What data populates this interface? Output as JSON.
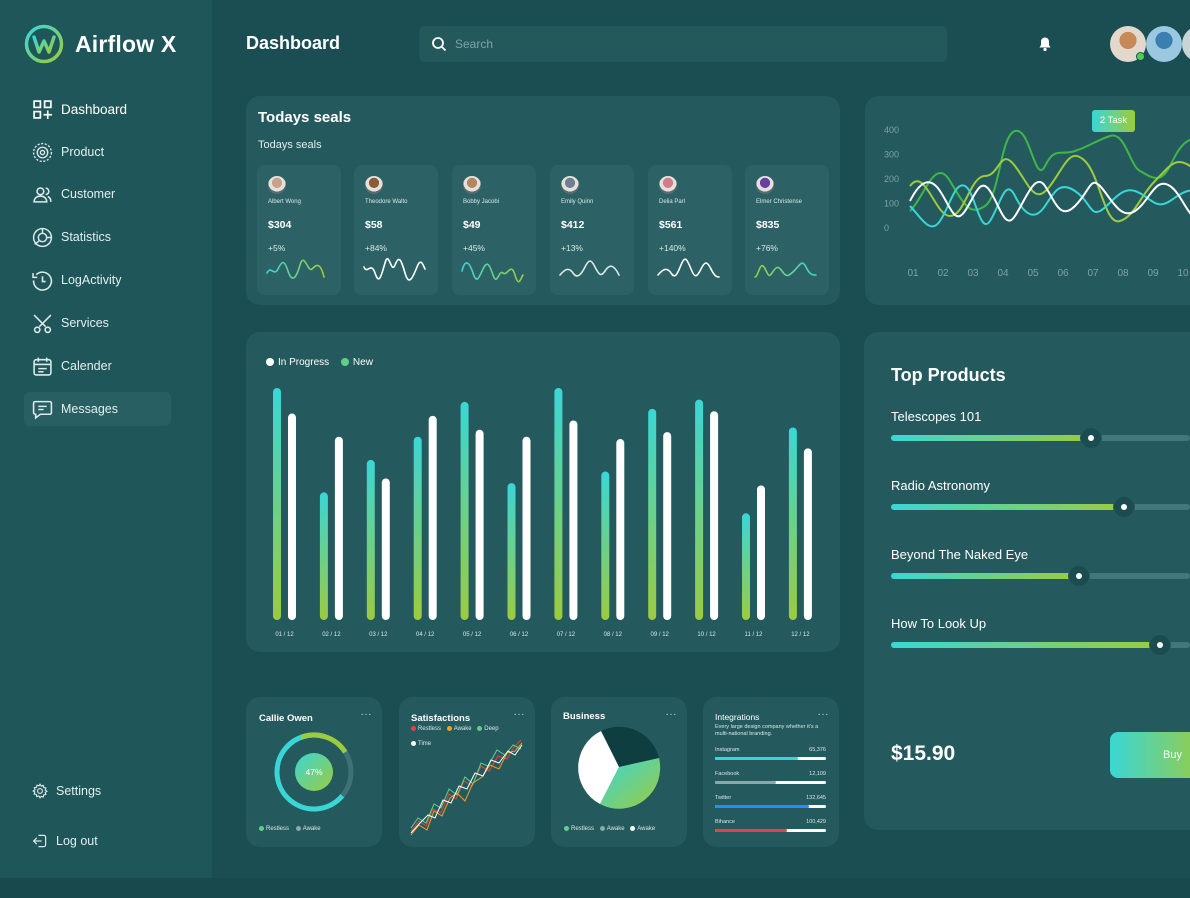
{
  "app": {
    "name": "Airflow X"
  },
  "nav": {
    "items": [
      {
        "label": "Dashboard"
      },
      {
        "label": "Product"
      },
      {
        "label": "Customer"
      },
      {
        "label": "Statistics"
      },
      {
        "label": "LogActivity"
      },
      {
        "label": "Services"
      },
      {
        "label": "Calender"
      },
      {
        "label": "Messages"
      }
    ],
    "settings": "Settings",
    "logout": "Log out"
  },
  "header": {
    "title": "Dashboard",
    "search_placeholder": "Search"
  },
  "seals": {
    "title": "Todays seals",
    "subtitle": "Todays seals",
    "items": [
      {
        "name": "Albert Wong",
        "amount": "$304",
        "change": "+5%"
      },
      {
        "name": "Theodore Walto",
        "amount": "$58",
        "change": "+84%"
      },
      {
        "name": "Bobby Jacobi",
        "amount": "$49",
        "change": "+45%"
      },
      {
        "name": "Emily Quinn",
        "amount": "$412",
        "change": "+13%"
      },
      {
        "name": "Delia Parl",
        "amount": "$561",
        "change": "+140%"
      },
      {
        "name": "Elmer Christense",
        "amount": "$835",
        "change": "+76%"
      }
    ]
  },
  "wave": {
    "badge": "2 Task"
  },
  "top_products": {
    "title": "Top Products",
    "items": [
      {
        "name": "Telescopes 101",
        "progress": 0.67
      },
      {
        "name": "Radio Astronomy",
        "progress": 0.78
      },
      {
        "name": "Beyond The Naked Eye",
        "progress": 0.63
      },
      {
        "name": "How To Look Up",
        "progress": 0.9
      }
    ],
    "price": "$15.90",
    "buy_label": "Buy"
  },
  "callie": {
    "title": "Callie Owen",
    "percent": "47%",
    "legend": [
      "Restless",
      "Awake"
    ]
  },
  "satisfactions": {
    "title": "Satisfactions",
    "legend": [
      "Restless",
      "Awake",
      "Deep",
      "Time"
    ]
  },
  "business": {
    "title": "Business",
    "legend": [
      "Restless",
      "Awake",
      "Awake"
    ]
  },
  "integrations": {
    "title": "Integrations",
    "description": "Every large design company whether it's a multi-national branding.",
    "items": [
      {
        "name": "Instagram",
        "value": "65,376",
        "progress": 0.75,
        "color": "#3ad6d6"
      },
      {
        "name": "Facebook",
        "value": "12,109",
        "progress": 0.55,
        "color": "#8aa9aa"
      },
      {
        "name": "Twitter",
        "value": "132,645",
        "progress": 0.85,
        "color": "#1e90ff"
      },
      {
        "name": "Bihance",
        "value": "100,429",
        "progress": 0.65,
        "color": "#e84040"
      }
    ]
  },
  "colors": {
    "accent": "#3ad6d6",
    "green": "#9ccb3f",
    "bg": "#1b4e52"
  },
  "chart_data": [
    {
      "type": "bar",
      "title": "",
      "legend": [
        "In Progress",
        "New"
      ],
      "categories": [
        "01 / 12",
        "02 / 12",
        "03 / 12",
        "04 / 12",
        "05 / 12",
        "06 / 12",
        "07 / 12",
        "08 / 12",
        "09 / 12",
        "10 / 12",
        "11 / 12",
        "12 / 12"
      ],
      "series": [
        {
          "name": "In Progress",
          "values": [
            100,
            55,
            69,
            79,
            94,
            59,
            100,
            64,
            91,
            95,
            46,
            83
          ]
        },
        {
          "name": "New",
          "values": [
            89,
            79,
            61,
            88,
            82,
            79,
            86,
            78,
            81,
            90,
            58,
            74
          ]
        }
      ],
      "ylim": [
        0,
        100
      ]
    },
    {
      "type": "line",
      "categories": [
        "01",
        "02",
        "03",
        "04",
        "05",
        "06",
        "07",
        "08",
        "09",
        "10"
      ],
      "y_ticks": [
        "400",
        "300",
        "200",
        "100",
        "0"
      ],
      "ylim": [
        0,
        400
      ]
    }
  ]
}
